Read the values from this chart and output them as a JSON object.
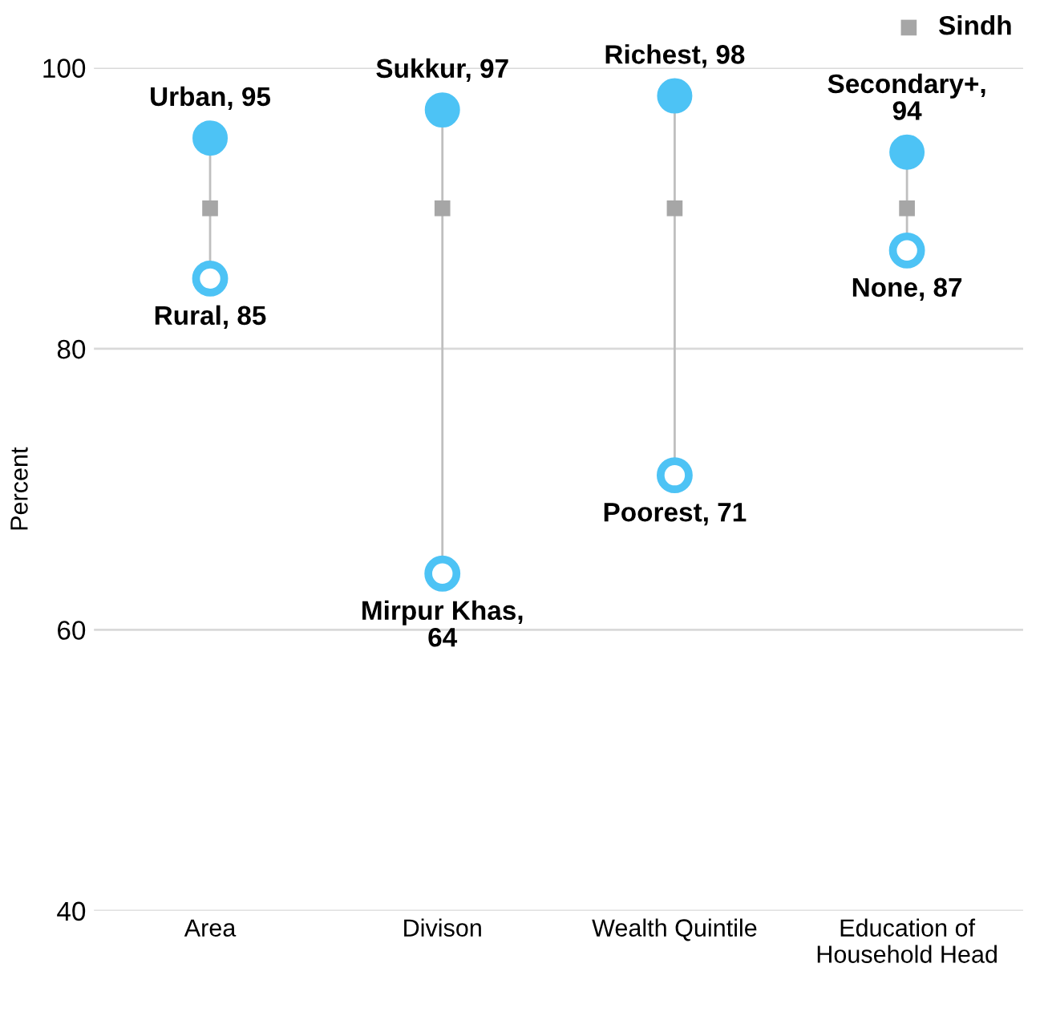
{
  "chart_data": {
    "type": "scatter",
    "ylabel": "Percent",
    "categories": [
      "Area",
      "Divison",
      "Wealth Quintile",
      "Education of\nHousehold Head"
    ],
    "series": [
      {
        "color": "#4dc3f5",
        "marker": "circle",
        "values": [
          95,
          97,
          98,
          94
        ],
        "value_labels": [
          "Urban, 95",
          "Sukkur, 97",
          "Richest, 98",
          "Secondary+,\n94"
        ]
      },
      {
        "color": "#4dc3f5",
        "marker": "circle",
        "values": [
          85,
          64,
          71,
          87
        ],
        "value_labels": [
          "Rural, 85",
          "Mirpur Khas,\n64",
          "Poorest, 71",
          "None, 87"
        ]
      },
      {
        "name": "Sindh",
        "color": "#a6a6a6",
        "marker": "square",
        "values": [
          90,
          90,
          90,
          90
        ]
      }
    ],
    "ylim": [
      40,
      100
    ],
    "yticks": [
      40,
      60,
      80,
      100
    ],
    "grid": "y",
    "legend": "top right"
  }
}
